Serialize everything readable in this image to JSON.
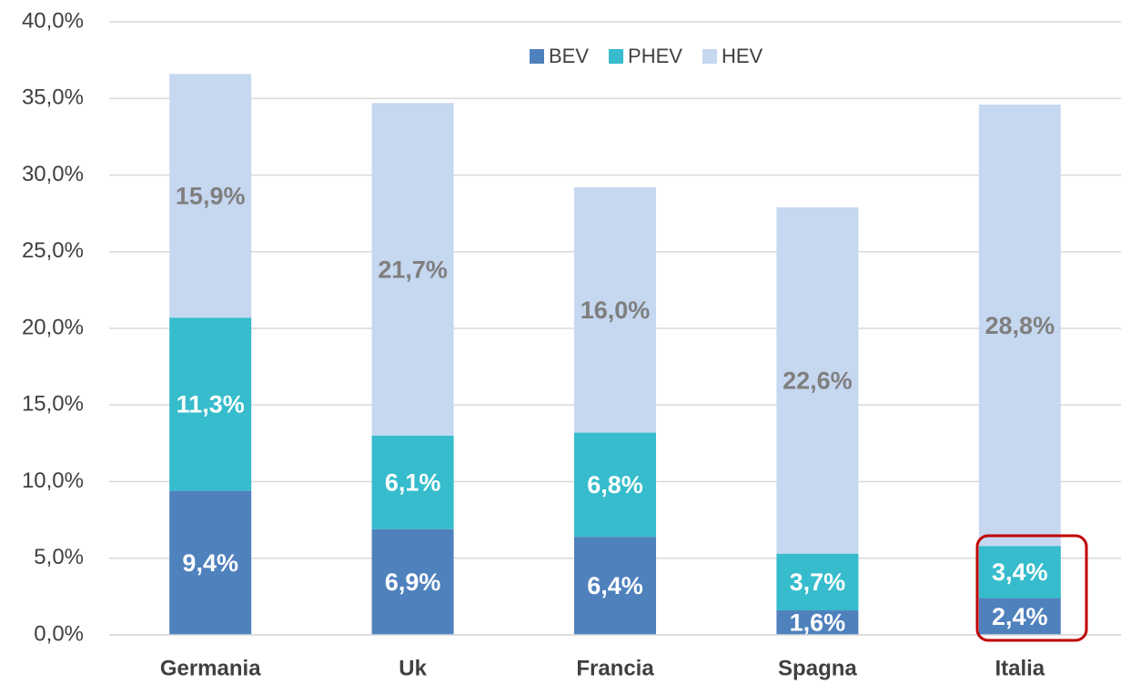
{
  "chart_data": {
    "type": "stacked_bar",
    "categories": [
      "Germania",
      "Uk",
      "Francia",
      "Spagna",
      "Italia"
    ],
    "series": [
      {
        "name": "BEV",
        "color": "#4f81bd",
        "values": [
          9.4,
          6.9,
          6.4,
          1.6,
          2.4
        ],
        "value_labels": [
          "9,4%",
          "6,9%",
          "6,4%",
          "1,6%",
          "2,4%"
        ]
      },
      {
        "name": "PHEV",
        "color": "#36bccc",
        "values": [
          11.3,
          6.1,
          6.8,
          3.7,
          3.4
        ],
        "value_labels": [
          "11,3%",
          "6,1%",
          "6,8%",
          "3,7%",
          "3,4%"
        ]
      },
      {
        "name": "HEV",
        "color": "#c6d7f0",
        "values": [
          15.9,
          21.7,
          16.0,
          22.6,
          28.8
        ],
        "value_labels": [
          "15,9%",
          "21,7%",
          "16,0%",
          "22,6%",
          "28,8%"
        ]
      }
    ],
    "ylim": [
      0,
      40
    ],
    "yticks": [
      {
        "value": 0,
        "label": "0,0%"
      },
      {
        "value": 5,
        "label": "5,0%"
      },
      {
        "value": 10,
        "label": "10,0%"
      },
      {
        "value": 15,
        "label": "15,0%"
      },
      {
        "value": 20,
        "label": "20,0%"
      },
      {
        "value": 25,
        "label": "25,0%"
      },
      {
        "value": 30,
        "label": "30,0%"
      },
      {
        "value": 35,
        "label": "35,0%"
      },
      {
        "value": 40,
        "label": "40,0%"
      }
    ],
    "grid": true,
    "legend": "top"
  }
}
